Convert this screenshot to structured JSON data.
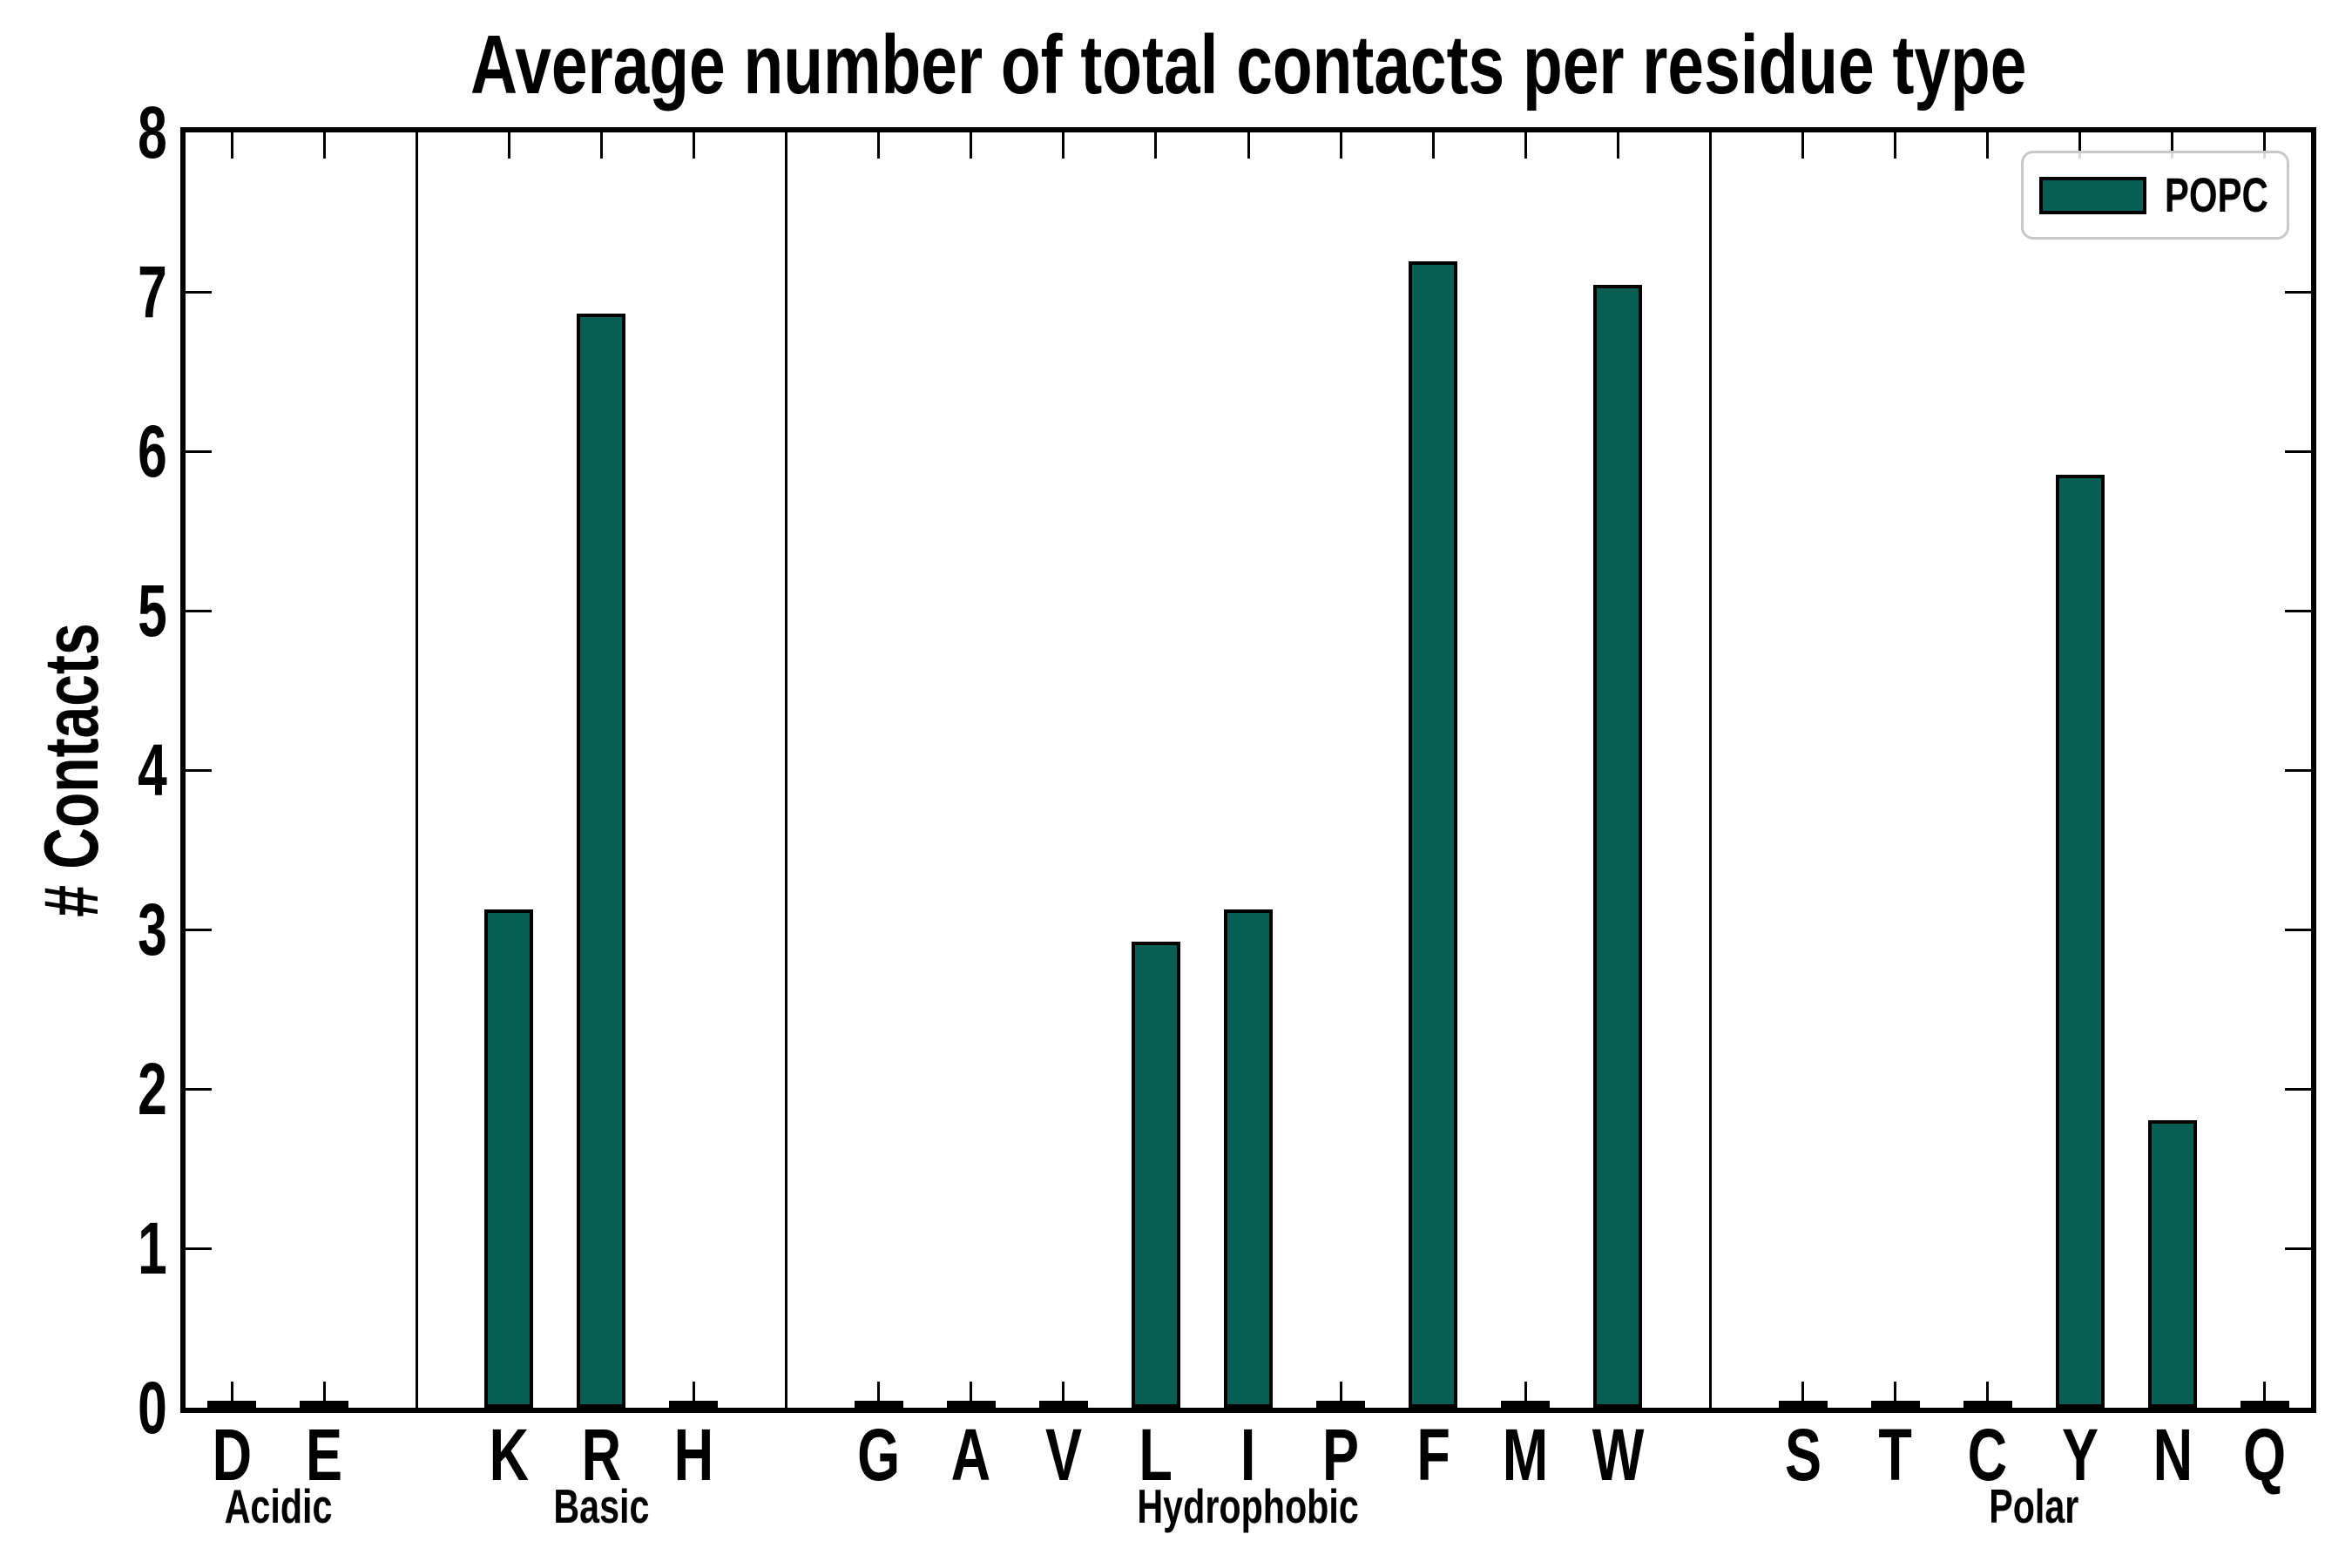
{
  "title": "Average number of total contacts per residue type",
  "chart_data": {
    "type": "bar",
    "title": "Average number of total contacts per residue type",
    "xlabel": "",
    "ylabel": "# Contacts",
    "ylim": [
      0,
      8
    ],
    "yticks": [
      0,
      1,
      2,
      3,
      4,
      5,
      6,
      7,
      8
    ],
    "grid": false,
    "bar_color": "#075e53",
    "bar_edge_color": "#000000",
    "legend": {
      "position": "upper right",
      "entries": [
        {
          "label": "POPC",
          "color": "#075e53"
        }
      ]
    },
    "groups": [
      {
        "label": "Acidic",
        "categories": [
          "D",
          "E"
        ],
        "values": [
          0,
          0
        ]
      },
      {
        "label": "Basic",
        "categories": [
          "K",
          "R",
          "H"
        ],
        "values": [
          3.08,
          6.82,
          0
        ]
      },
      {
        "label": "Hydrophobic",
        "categories": [
          "G",
          "A",
          "V",
          "L",
          "I",
          "P",
          "F",
          "M",
          "W"
        ],
        "values": [
          0,
          0,
          0,
          2.88,
          3.08,
          0,
          7.15,
          0,
          7.0
        ]
      },
      {
        "label": "Polar",
        "categories": [
          "S",
          "T",
          "C",
          "Y",
          "N",
          "Q"
        ],
        "values": [
          0,
          0,
          0,
          5.81,
          1.76,
          0
        ]
      }
    ]
  }
}
